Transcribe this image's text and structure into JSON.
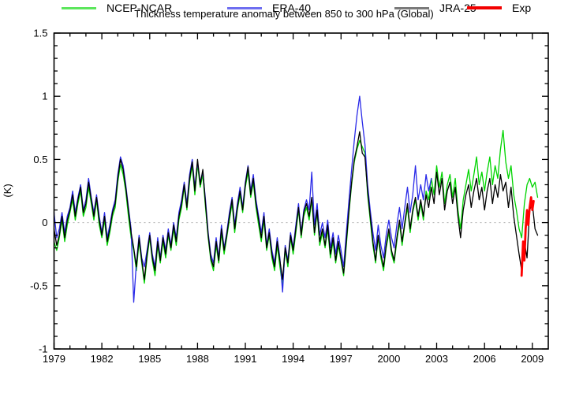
{
  "title": "Thickness temperature anomaly between 850 to 300 hPa (Global)",
  "ylabel": "(K)",
  "chart_data": {
    "type": "line",
    "title": "Thickness temperature anomaly between 850 to 300 hPa (Global)",
    "xlabel": "",
    "ylabel": "(K)",
    "xlim": [
      1979,
      2010
    ],
    "ylim": [
      -1,
      1.5
    ],
    "grid": false,
    "zero_line": true,
    "zero_line_color": "#b0b0b0",
    "legend_position": "bottom",
    "x_tick_values": [
      1979,
      1982,
      1985,
      1988,
      1991,
      1994,
      1997,
      2000,
      2003,
      2006,
      2009
    ],
    "x_tick_labels": [
      "1979",
      "1982",
      "1985",
      "1988",
      "1991",
      "1994",
      "1997",
      "2000",
      "2003",
      "2006",
      "2009"
    ],
    "x_minor_step": 1,
    "y_tick_values": [
      -1,
      -0.5,
      0,
      0.5,
      1,
      1.5
    ],
    "y_tick_labels": [
      "-1",
      "-0.5",
      "0",
      "0.5",
      "1",
      "1.5"
    ],
    "y_minor_step": 0.1,
    "series": [
      {
        "name": "NCEP-NCAR",
        "color": "#00d400",
        "legend_color": "#5ce65c",
        "width": 1.3,
        "x_start": 1979.0,
        "x_step": 0.166667,
        "values": [
          -0.15,
          -0.22,
          -0.12,
          0.02,
          -0.15,
          -0.02,
          0.08,
          0.18,
          0.02,
          0.15,
          0.25,
          0.05,
          0.12,
          0.28,
          0.15,
          0.02,
          0.18,
          -0.02,
          -0.12,
          0.02,
          -0.18,
          -0.08,
          0.05,
          0.12,
          0.32,
          0.46,
          0.38,
          0.25,
          0.05,
          -0.12,
          -0.22,
          -0.38,
          -0.15,
          -0.32,
          -0.48,
          -0.28,
          -0.12,
          -0.3,
          -0.42,
          -0.18,
          -0.32,
          -0.15,
          -0.28,
          -0.1,
          -0.22,
          -0.05,
          -0.18,
          0.02,
          0.12,
          0.28,
          0.1,
          0.32,
          0.45,
          0.22,
          0.46,
          0.28,
          0.38,
          0.12,
          -0.12,
          -0.3,
          -0.38,
          -0.18,
          -0.32,
          -0.08,
          -0.25,
          -0.12,
          0.02,
          0.15,
          -0.08,
          0.1,
          0.22,
          0.08,
          0.28,
          0.4,
          0.2,
          0.32,
          0.12,
          -0.02,
          -0.15,
          0.02,
          -0.22,
          -0.1,
          -0.28,
          -0.38,
          -0.18,
          -0.35,
          -0.5,
          -0.22,
          -0.35,
          -0.12,
          -0.25,
          -0.08,
          0.1,
          -0.12,
          0.05,
          0.12,
          0.02,
          0.18,
          -0.1,
          0.08,
          -0.18,
          -0.08,
          -0.2,
          -0.05,
          -0.28,
          -0.15,
          -0.32,
          -0.18,
          -0.3,
          -0.42,
          -0.18,
          0.08,
          0.3,
          0.48,
          0.58,
          0.65,
          0.6,
          0.55,
          0.22,
          0.02,
          -0.18,
          -0.32,
          -0.12,
          -0.28,
          -0.38,
          -0.2,
          -0.08,
          -0.25,
          -0.32,
          -0.15,
          0.0,
          -0.18,
          -0.02,
          0.12,
          -0.08,
          0.08,
          0.18,
          0.02,
          0.15,
          0.02,
          0.25,
          0.18,
          0.35,
          0.22,
          0.45,
          0.28,
          0.4,
          0.15,
          0.3,
          0.38,
          0.2,
          0.35,
          0.1,
          -0.05,
          0.18,
          0.3,
          0.42,
          0.25,
          0.38,
          0.52,
          0.3,
          0.4,
          0.25,
          0.4,
          0.52,
          0.3,
          0.45,
          0.35,
          0.58,
          0.73,
          0.48,
          0.35,
          0.45,
          0.22,
          0.1,
          -0.05,
          -0.12,
          0.15,
          0.3,
          0.35,
          0.28,
          0.32,
          0.2
        ]
      },
      {
        "name": "ERA-40",
        "color": "#2a2ae8",
        "legend_color": "#6e6ef0",
        "width": 1.3,
        "x_start": 1979.0,
        "x_step": 0.166667,
        "values": [
          0.08,
          -0.12,
          -0.05,
          0.08,
          -0.08,
          0.05,
          0.12,
          0.25,
          0.08,
          0.2,
          0.3,
          0.1,
          0.18,
          0.35,
          0.2,
          0.08,
          0.22,
          0.05,
          -0.08,
          0.08,
          -0.12,
          -0.02,
          0.1,
          0.18,
          0.38,
          0.52,
          0.45,
          0.3,
          0.12,
          -0.05,
          -0.63,
          -0.32,
          -0.1,
          -0.28,
          -0.35,
          -0.22,
          -0.08,
          -0.25,
          -0.35,
          -0.12,
          -0.28,
          -0.1,
          -0.22,
          -0.05,
          -0.18,
          0.0,
          -0.12,
          0.08,
          0.18,
          0.32,
          0.15,
          0.38,
          0.5,
          0.28,
          0.48,
          0.32,
          0.4,
          0.18,
          -0.08,
          -0.25,
          -0.32,
          -0.12,
          -0.28,
          -0.02,
          -0.2,
          -0.08,
          0.08,
          0.2,
          -0.02,
          0.15,
          0.28,
          0.12,
          0.32,
          0.45,
          0.25,
          0.38,
          0.18,
          0.05,
          -0.08,
          0.08,
          -0.18,
          -0.05,
          -0.22,
          -0.32,
          -0.12,
          -0.28,
          -0.55,
          -0.18,
          -0.3,
          -0.08,
          -0.2,
          -0.02,
          0.15,
          -0.08,
          0.1,
          0.18,
          0.1,
          0.4,
          -0.02,
          0.15,
          -0.1,
          0.0,
          -0.12,
          0.02,
          -0.2,
          -0.08,
          -0.25,
          -0.1,
          -0.22,
          -0.35,
          -0.08,
          0.18,
          0.42,
          0.65,
          0.85,
          1.0,
          0.8,
          0.62,
          0.3,
          0.1,
          -0.08,
          -0.22,
          -0.02,
          -0.18,
          -0.28,
          -0.1,
          0.02,
          -0.12,
          -0.2,
          -0.02,
          0.12,
          -0.05,
          0.12,
          0.28,
          0.08,
          0.22,
          0.45,
          0.18,
          0.3,
          0.18,
          0.38,
          0.25,
          0.35
        ]
      },
      {
        "name": "JRA-25",
        "color": "#000000",
        "legend_color": "#7a7a7a",
        "width": 1.3,
        "x_start": 1979.0,
        "x_step": 0.166667,
        "values": [
          -0.05,
          -0.18,
          -0.1,
          0.05,
          -0.12,
          0.02,
          0.1,
          0.22,
          0.05,
          0.18,
          0.28,
          0.08,
          0.15,
          0.32,
          0.18,
          0.05,
          0.2,
          0.02,
          -0.1,
          0.05,
          -0.15,
          -0.05,
          0.08,
          0.15,
          0.35,
          0.5,
          0.42,
          0.28,
          0.1,
          -0.08,
          -0.2,
          -0.35,
          -0.12,
          -0.3,
          -0.45,
          -0.25,
          -0.1,
          -0.28,
          -0.38,
          -0.15,
          -0.3,
          -0.12,
          -0.25,
          -0.08,
          -0.2,
          -0.02,
          -0.15,
          0.05,
          0.15,
          0.3,
          0.12,
          0.35,
          0.48,
          0.25,
          0.5,
          0.3,
          0.42,
          0.15,
          -0.1,
          -0.28,
          -0.35,
          -0.15,
          -0.3,
          -0.05,
          -0.22,
          -0.1,
          0.05,
          0.18,
          -0.05,
          0.12,
          0.25,
          0.1,
          0.3,
          0.44,
          0.22,
          0.35,
          0.15,
          0.02,
          -0.12,
          0.05,
          -0.2,
          -0.08,
          -0.25,
          -0.35,
          -0.15,
          -0.3,
          -0.45,
          -0.2,
          -0.32,
          -0.1,
          -0.22,
          -0.05,
          0.12,
          -0.1,
          0.08,
          0.15,
          0.05,
          0.2,
          -0.08,
          0.1,
          -0.15,
          -0.05,
          -0.18,
          -0.02,
          -0.25,
          -0.12,
          -0.3,
          -0.15,
          -0.28,
          -0.4,
          -0.15,
          0.1,
          0.32,
          0.5,
          0.6,
          0.72,
          0.55,
          0.52,
          0.25,
          0.05,
          -0.15,
          -0.3,
          -0.1,
          -0.25,
          -0.35,
          -0.18,
          -0.05,
          -0.22,
          -0.3,
          -0.12,
          0.02,
          -0.15,
          0.0,
          0.15,
          -0.05,
          0.1,
          0.2,
          0.05,
          0.18,
          0.05,
          0.22,
          0.12,
          0.28,
          0.15,
          0.4,
          0.22,
          0.35,
          0.1,
          0.25,
          0.32,
          0.15,
          0.28,
          0.05,
          -0.12,
          0.1,
          0.22,
          0.3,
          0.12,
          0.25,
          0.35,
          0.18,
          0.28,
          0.1,
          0.25,
          0.35,
          0.15,
          0.3,
          0.2,
          0.38,
          0.25,
          0.32,
          0.12,
          0.28,
          0.05,
          -0.1,
          -0.25,
          -0.38,
          -0.15,
          -0.28,
          0.1,
          0.15,
          -0.05,
          -0.1
        ]
      },
      {
        "name": "Exp",
        "color": "#ff0000",
        "legend_color": "#f20000",
        "width": 2.8,
        "x": [
          2008.33,
          2008.42,
          2008.5,
          2008.58,
          2008.67,
          2008.75,
          2008.83,
          2008.92,
          2009.0,
          2009.08
        ],
        "values": [
          -0.42,
          -0.15,
          -0.3,
          -0.05,
          0.1,
          -0.02,
          0.12,
          0.2,
          0.1,
          0.17
        ]
      }
    ]
  },
  "legend": {
    "items": [
      {
        "label": "NCEP-NCAR"
      },
      {
        "label": "ERA-40"
      },
      {
        "label": "JRA-25"
      },
      {
        "label": "Exp"
      }
    ]
  }
}
